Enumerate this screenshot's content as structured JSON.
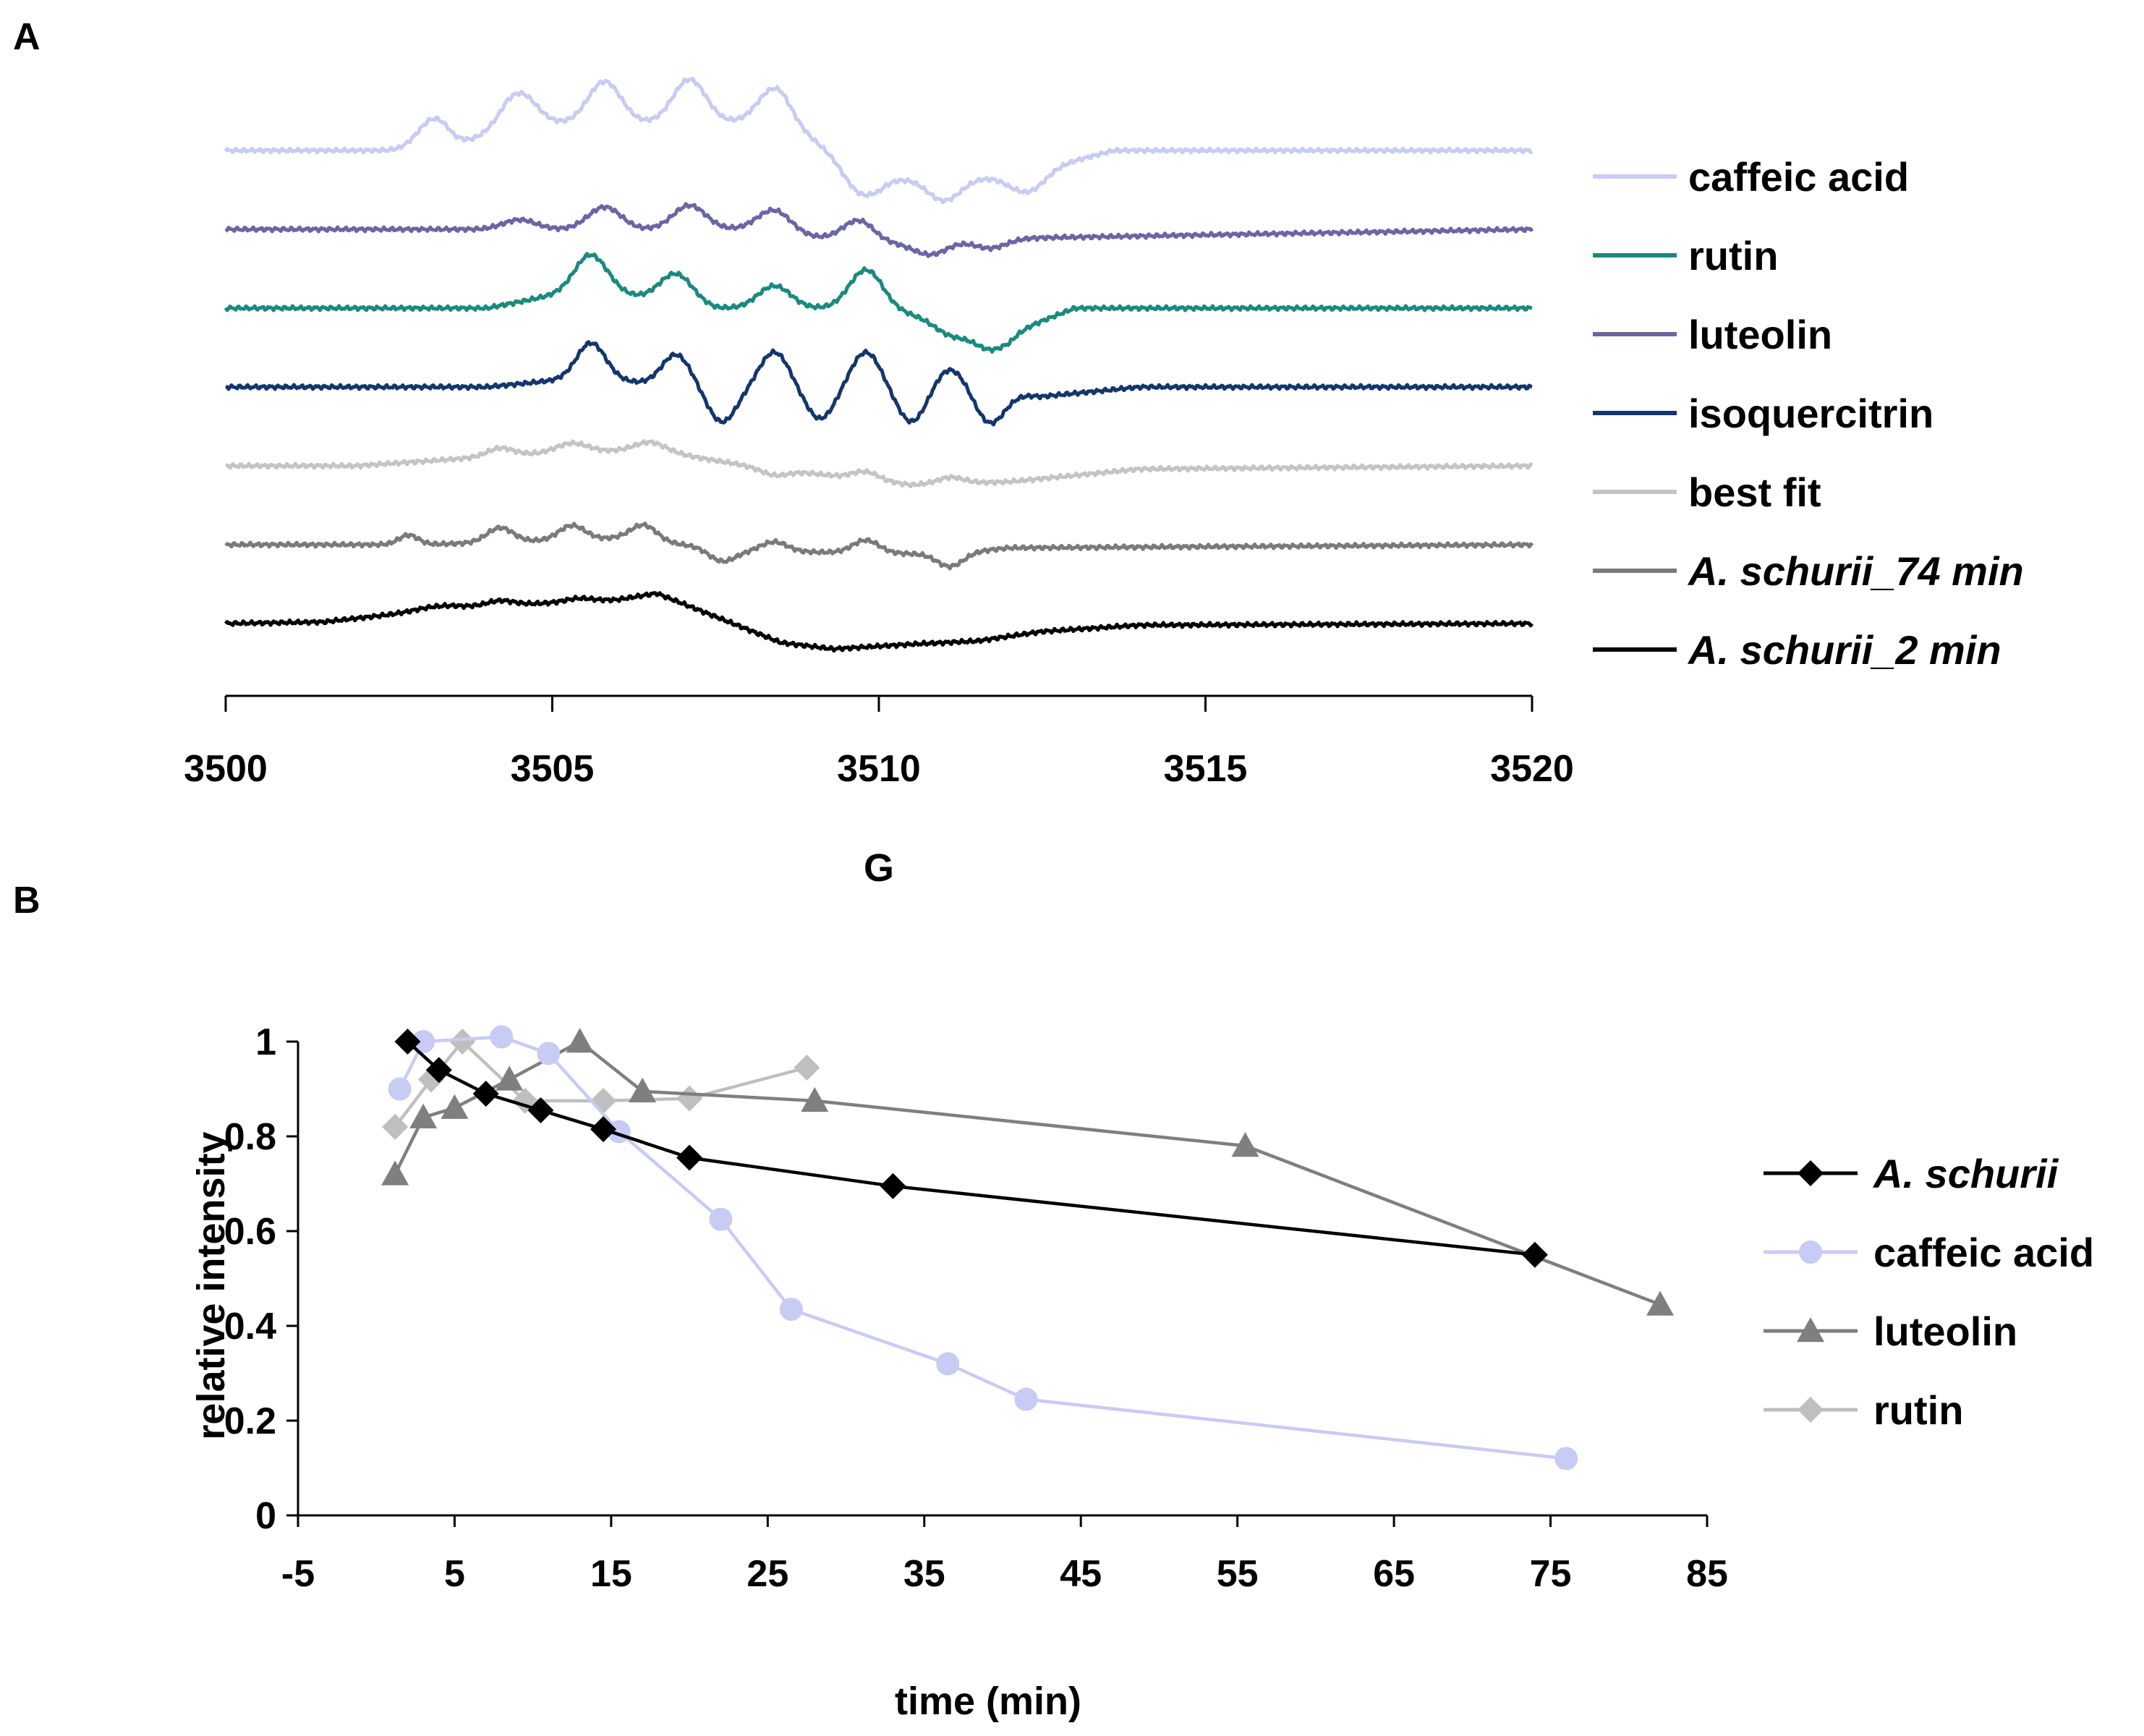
{
  "figure": {
    "panel_a_label": "A",
    "panel_b_label": "B"
  },
  "chart_data": [
    {
      "panel": "A",
      "type": "line",
      "title": "",
      "xlabel": "G",
      "ylabel": "",
      "xlim": [
        3500,
        3520
      ],
      "xticks": [
        3500,
        3505,
        3510,
        3515,
        3520
      ],
      "yaxis_visible": false,
      "grid": false,
      "legend_position": "right",
      "series": [
        {
          "name": "caffeic acid",
          "italic": false,
          "color": "#c8cbf3",
          "offset": 6,
          "peaks": [
            [
              3503.2,
              1.0,
              0.25
            ],
            [
              3504.5,
              0.95,
              0.25
            ],
            [
              3505.8,
              1.3,
              0.25
            ],
            [
              3507.1,
              1.35,
              0.25
            ],
            [
              3508.4,
              1.05,
              0.25
            ],
            [
              3509.7,
              -0.8,
              0.25
            ],
            [
              3511.0,
              -0.7,
              0.25
            ],
            [
              3512.3,
              -0.6,
              0.25
            ]
          ],
          "trend": [
            [
              3500,
              0
            ],
            [
              3503.5,
              0
            ],
            [
              3504.3,
              0.85
            ],
            [
              3508.5,
              0.9
            ],
            [
              3510,
              -0.9
            ],
            [
              3512,
              -0.85
            ],
            [
              3513.6,
              0
            ],
            [
              3520,
              0
            ]
          ]
        },
        {
          "name": "luteolin",
          "italic": false,
          "color": "#6a66a3",
          "offset": 5,
          "peaks": [
            [
              3504.5,
              0.3,
              0.25
            ],
            [
              3505.8,
              0.7,
              0.25
            ],
            [
              3507.1,
              0.75,
              0.25
            ],
            [
              3508.4,
              0.7,
              0.25
            ],
            [
              3509.7,
              0.7,
              0.25
            ],
            [
              3510.8,
              -0.4,
              0.25
            ],
            [
              3511.7,
              -0.3,
              0.25
            ]
          ],
          "trend": [
            [
              3500,
              0
            ],
            [
              3505,
              0
            ],
            [
              3508,
              0
            ],
            [
              3510,
              -0.5
            ],
            [
              3511.5,
              -0.3
            ],
            [
              3520,
              0
            ]
          ]
        },
        {
          "name": "rutin",
          "italic": false,
          "color": "#1b8a7e",
          "offset": 4,
          "peaks": [
            [
              3505.6,
              1.1,
              0.25
            ],
            [
              3506.9,
              0.9,
              0.25
            ],
            [
              3508.4,
              0.7,
              0.25
            ],
            [
              3509.8,
              1.2,
              0.25
            ],
            [
              3511.1,
              -0.4,
              0.25
            ],
            [
              3511.7,
              -0.6,
              0.25
            ]
          ],
          "trend": [
            [
              3500,
              0
            ],
            [
              3504,
              0
            ],
            [
              3505.5,
              0.6
            ],
            [
              3507.5,
              0
            ],
            [
              3510,
              0
            ],
            [
              3512,
              -0.8
            ],
            [
              3513,
              0
            ],
            [
              3520,
              0
            ]
          ]
        },
        {
          "name": "isoquercitrin",
          "italic": false,
          "color": "#13366b",
          "offset": 3,
          "peaks": [
            [
              3505.6,
              1.1,
              0.22
            ],
            [
              3506.9,
              1.0,
              0.22
            ],
            [
              3507.6,
              -1.1,
              0.22
            ],
            [
              3508.4,
              1.1,
              0.22
            ],
            [
              3509.1,
              -1.0,
              0.22
            ],
            [
              3509.8,
              1.1,
              0.22
            ],
            [
              3510.5,
              -1.1,
              0.22
            ],
            [
              3511.1,
              0.6,
              0.22
            ],
            [
              3511.7,
              -1.0,
              0.22
            ]
          ],
          "trend": [
            [
              3500,
              0
            ],
            [
              3504,
              0
            ],
            [
              3505.5,
              0.3
            ],
            [
              3507,
              0
            ],
            [
              3511,
              0
            ],
            [
              3512.5,
              -0.3
            ],
            [
              3514,
              0
            ],
            [
              3520,
              0
            ]
          ]
        },
        {
          "name": "best fit",
          "italic": false,
          "color": "#c4c4c4",
          "offset": 2,
          "peaks": [
            [
              3504.2,
              0.25,
              0.2
            ],
            [
              3505.3,
              0.3,
              0.25
            ],
            [
              3506.5,
              0.25,
              0.25
            ],
            [
              3508.4,
              -0.2,
              0.2
            ],
            [
              3509.8,
              0.25,
              0.2
            ],
            [
              3511.1,
              0.2,
              0.2
            ]
          ],
          "trend": [
            [
              3500,
              0
            ],
            [
              3502,
              0
            ],
            [
              3504.5,
              0.35
            ],
            [
              3506.5,
              0.5
            ],
            [
              3508,
              0
            ],
            [
              3510.5,
              -0.6
            ],
            [
              3512,
              -0.5
            ],
            [
              3514,
              -0.1
            ],
            [
              3520,
              0
            ]
          ]
        },
        {
          "name": "A. schurii_74 min",
          "italic": true,
          "color": "#7a7a7a",
          "offset": 1,
          "peaks": [
            [
              3502.8,
              0.3,
              0.15
            ],
            [
              3504.2,
              0.45,
              0.2
            ],
            [
              3505.3,
              0.45,
              0.2
            ],
            [
              3506.4,
              0.5,
              0.2
            ],
            [
              3507.6,
              -0.4,
              0.2
            ],
            [
              3508.4,
              0.3,
              0.2
            ],
            [
              3509.8,
              0.4,
              0.2
            ],
            [
              3511.1,
              -0.4,
              0.2
            ]
          ],
          "trend": [
            [
              3500,
              0
            ],
            [
              3503,
              0
            ],
            [
              3506,
              0.2
            ],
            [
              3508,
              -0.2
            ],
            [
              3511,
              -0.3
            ],
            [
              3512,
              -0.1
            ],
            [
              3520,
              0
            ]
          ]
        },
        {
          "name": "A. schurii_2 min",
          "italic": true,
          "color": "#000000",
          "offset": 0,
          "peaks": [
            [
              3503.2,
              0.1,
              0.3
            ],
            [
              3504.2,
              0.15,
              0.2
            ],
            [
              3505.4,
              0.1,
              0.2
            ]
          ],
          "trend": [
            [
              3500,
              0
            ],
            [
              3501.5,
              0.05
            ],
            [
              3503.5,
              0.5
            ],
            [
              3505,
              0.65
            ],
            [
              3506,
              0.75
            ],
            [
              3506.6,
              0.95
            ],
            [
              3508.5,
              -0.6
            ],
            [
              3509.3,
              -0.8
            ],
            [
              3510.5,
              -0.65
            ],
            [
              3511.5,
              -0.55
            ],
            [
              3512.5,
              -0.25
            ],
            [
              3514,
              -0.05
            ],
            [
              3520,
              0
            ]
          ]
        }
      ]
    },
    {
      "panel": "B",
      "type": "line",
      "title": "",
      "xlabel": "time (min)",
      "ylabel": "relative intensity",
      "xlim": [
        -5,
        85
      ],
      "ylim": [
        0,
        1
      ],
      "xticks": [
        -5,
        5,
        15,
        25,
        35,
        45,
        55,
        65,
        75,
        85
      ],
      "yticks": [
        0,
        0.2,
        0.4,
        0.6,
        0.8,
        1
      ],
      "ytick_labels": [
        "0",
        "0.2",
        "0.4",
        "0.6",
        "0.8",
        "1"
      ],
      "grid": false,
      "legend_position": "right",
      "series": [
        {
          "name": "A. schurii",
          "italic": true,
          "color": "#000000",
          "marker": "diamond",
          "x": [
            2,
            4,
            7,
            10.5,
            14.5,
            20,
            33,
            74
          ],
          "y": [
            1.0,
            0.94,
            0.89,
            0.855,
            0.815,
            0.755,
            0.695,
            0.55
          ]
        },
        {
          "name": "caffeic acid",
          "italic": false,
          "color": "#c8cbf3",
          "marker": "circle",
          "x": [
            1.5,
            3,
            8,
            11,
            15.5,
            22,
            26.5,
            36.5,
            41.5,
            76
          ],
          "y": [
            0.9,
            1.0,
            1.01,
            0.975,
            0.81,
            0.625,
            0.435,
            0.32,
            0.245,
            0.12
          ]
        },
        {
          "name": "luteolin",
          "italic": false,
          "color": "#7f7f7f",
          "marker": "triangle",
          "x": [
            1.2,
            3,
            5,
            8.5,
            13,
            17,
            28,
            55.5,
            82
          ],
          "y": [
            0.72,
            0.84,
            0.86,
            0.92,
            1.0,
            0.895,
            0.875,
            0.78,
            0.445
          ]
        },
        {
          "name": "rutin",
          "italic": false,
          "color": "#bfbfbf",
          "marker": "diamond",
          "x": [
            1.2,
            3.5,
            5.5,
            9.5,
            14.5,
            20,
            27.5
          ],
          "y": [
            0.82,
            0.92,
            1.0,
            0.875,
            0.875,
            0.88,
            0.945
          ]
        }
      ]
    }
  ]
}
